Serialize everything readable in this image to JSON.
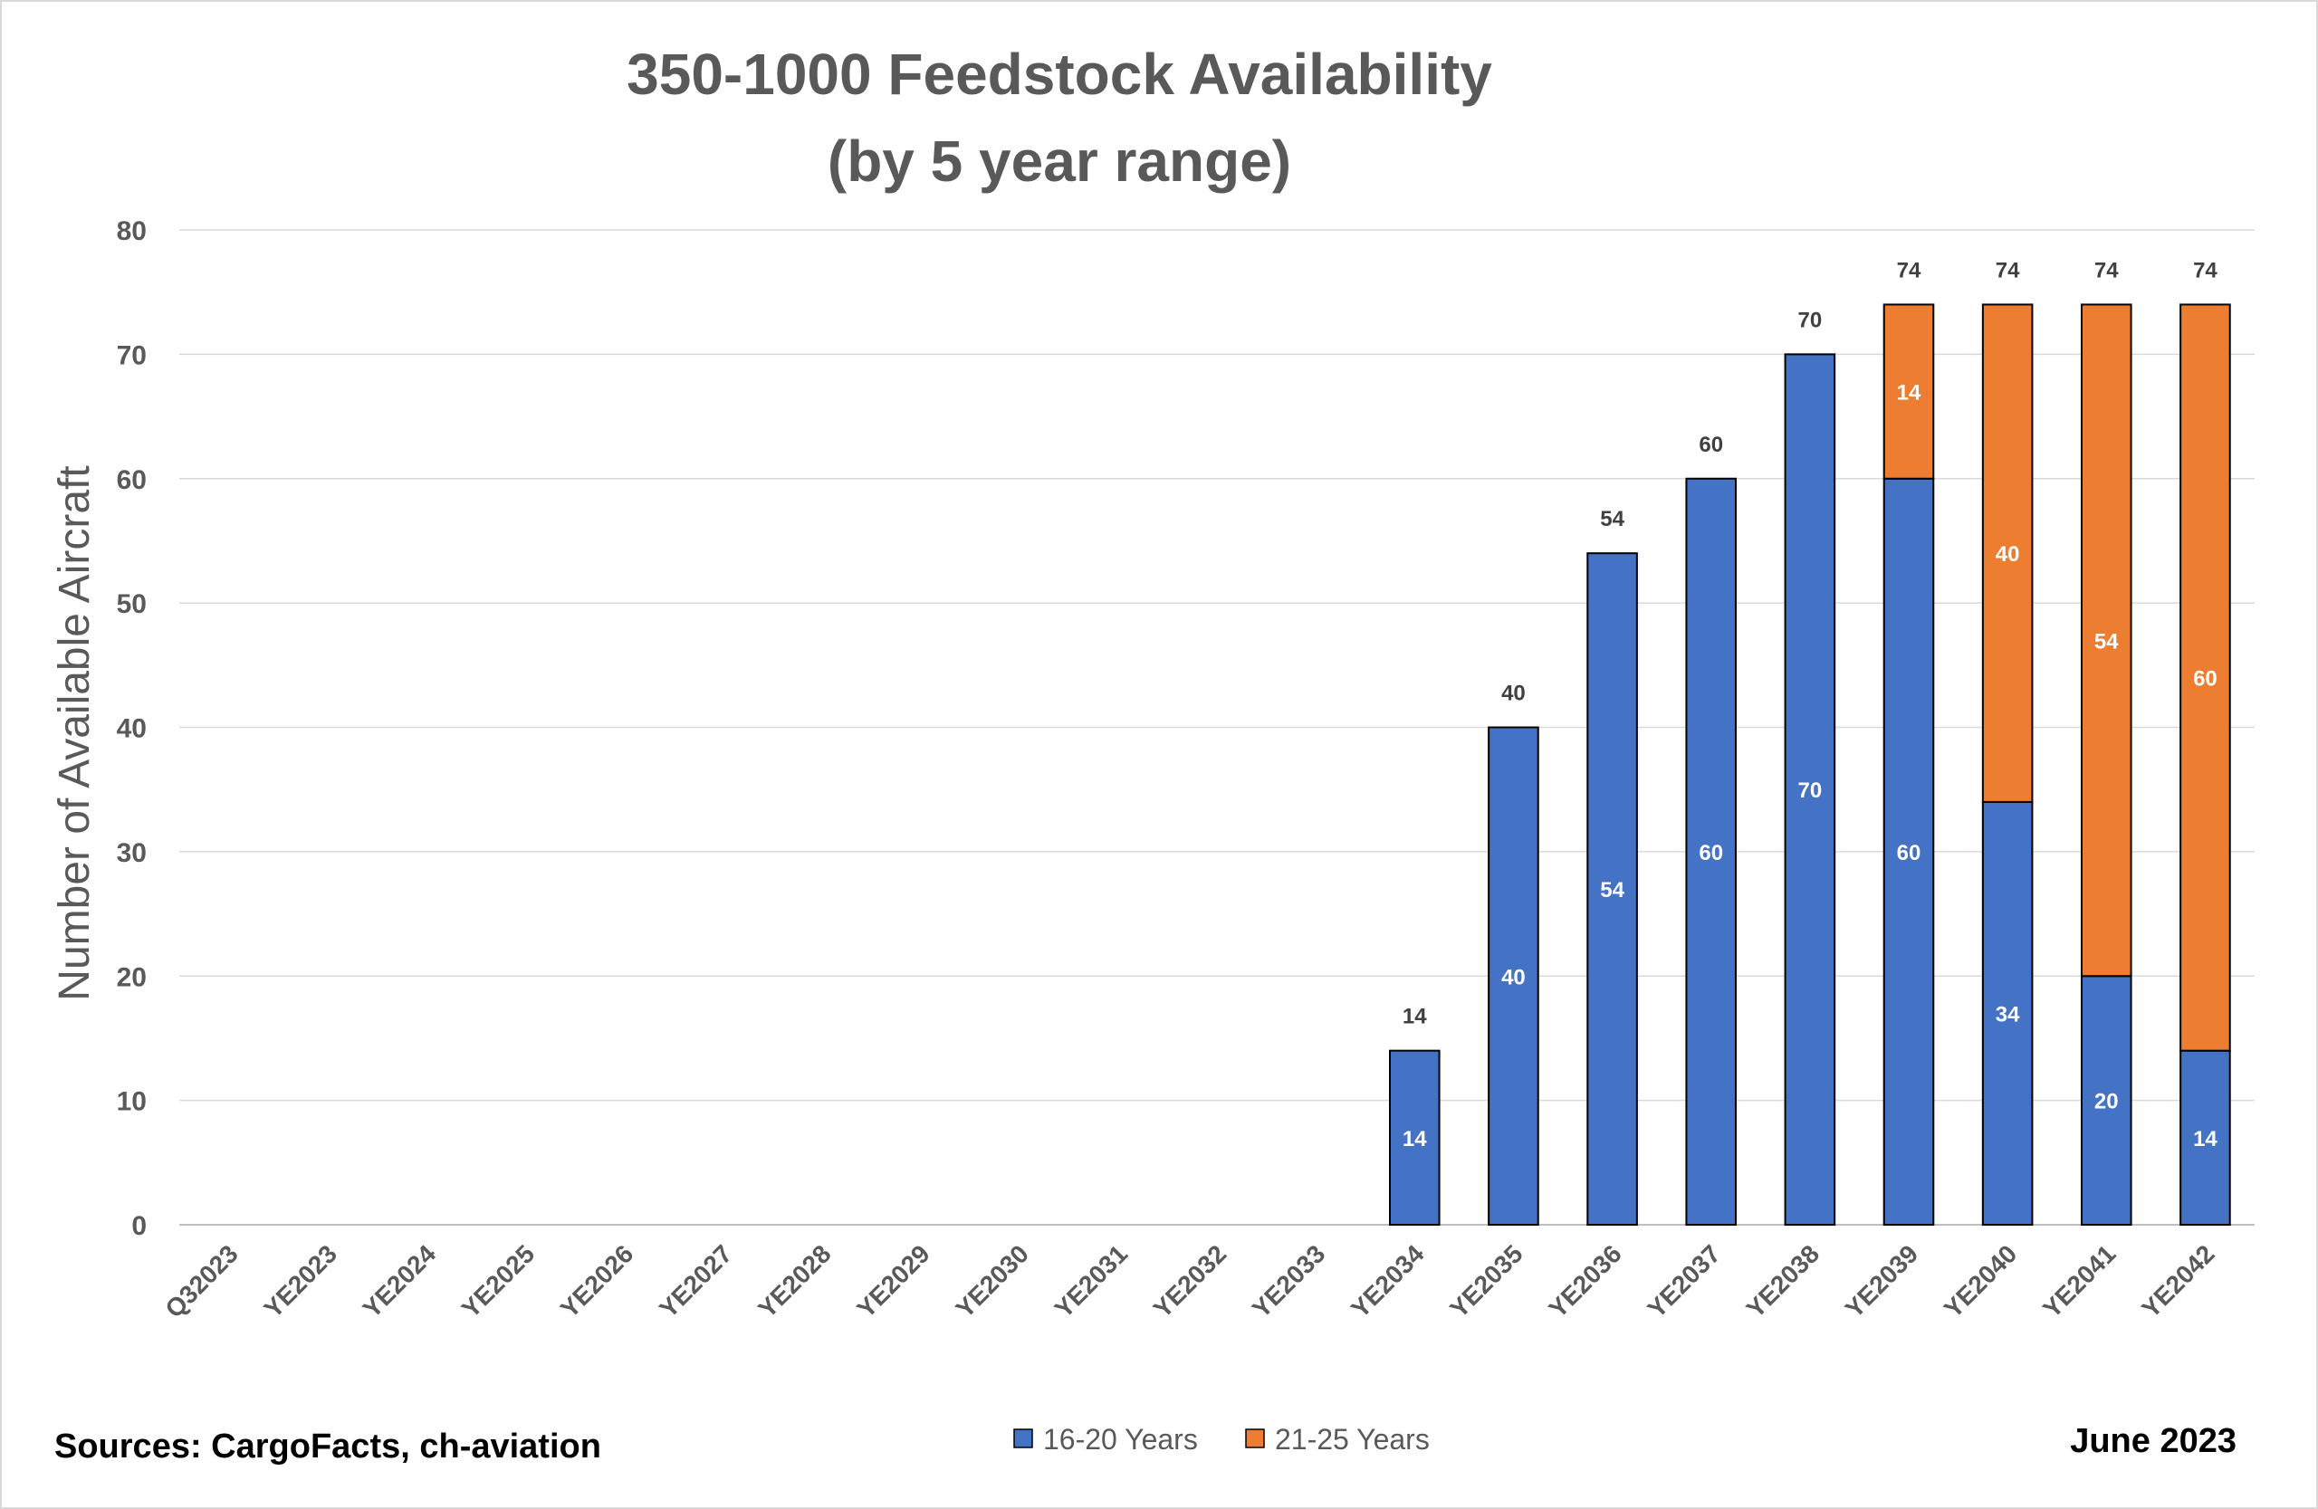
{
  "chart_data": {
    "type": "bar",
    "stacked": true,
    "title": [
      "350-1000 Feedstock Availability",
      "(by 5 year range)"
    ],
    "ylabel": "Number of Available Aircraft",
    "xlabel": "",
    "ylim": [
      0,
      80
    ],
    "yticks": [
      "0",
      "10",
      "20",
      "30",
      "40",
      "50",
      "60",
      "70",
      "80"
    ],
    "grid": true,
    "legend_position": "bottom",
    "categories": [
      "Q32023",
      "YE2023",
      "YE2024",
      "YE2025",
      "YE2026",
      "YE2027",
      "YE2028",
      "YE2029",
      "YE2030",
      "YE2031",
      "YE2032",
      "YE2033",
      "YE2034",
      "YE2035",
      "YE2036",
      "YE2037",
      "YE2038",
      "YE2039",
      "YE2040",
      "YE2041",
      "YE2042"
    ],
    "series": [
      {
        "name": "16-20 Years",
        "color": "#4472C4",
        "values": [
          0,
          0,
          0,
          0,
          0,
          0,
          0,
          0,
          0,
          0,
          0,
          0,
          14,
          40,
          54,
          60,
          70,
          60,
          34,
          20,
          14
        ]
      },
      {
        "name": "21-25 Years",
        "color": "#ED7D31",
        "values": [
          0,
          0,
          0,
          0,
          0,
          0,
          0,
          0,
          0,
          0,
          0,
          0,
          0,
          0,
          0,
          0,
          0,
          14,
          40,
          54,
          60
        ]
      }
    ],
    "totals": [
      null,
      null,
      null,
      null,
      null,
      null,
      null,
      null,
      null,
      null,
      null,
      null,
      14,
      40,
      54,
      60,
      70,
      74,
      74,
      74,
      74
    ]
  },
  "footer": {
    "sources": "Sources: CargoFacts, ch-aviation",
    "date": "June 2023"
  }
}
